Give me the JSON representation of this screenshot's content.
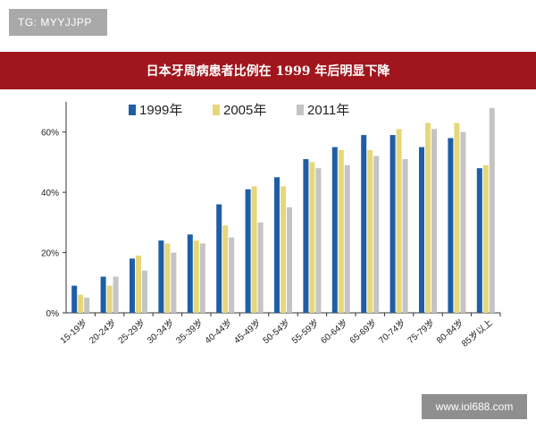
{
  "watermark_top": "TG: MYYJJPP",
  "watermark_bottom": "www.iol688.com",
  "chart_data": {
    "type": "bar",
    "title": "日本牙周病患者比例在 1999 年后明显下降",
    "xlabel": "",
    "ylabel": "",
    "categories": [
      "15-19岁",
      "20-24岁",
      "25-29岁",
      "30-34岁",
      "35-39岁",
      "40-44岁",
      "45-49岁",
      "50-54岁",
      "55-59岁",
      "60-64岁",
      "65-69岁",
      "70-74岁",
      "75-79岁",
      "80-84岁",
      "85岁以上"
    ],
    "series": [
      {
        "name": "1999年",
        "color": "#1f5ea6",
        "values": [
          9,
          12,
          18,
          24,
          26,
          36,
          41,
          45,
          51,
          55,
          59,
          59,
          55,
          58,
          48
        ]
      },
      {
        "name": "2005年",
        "color": "#e6d77a",
        "values": [
          6,
          9,
          19,
          23,
          24,
          29,
          42,
          42,
          50,
          54,
          54,
          61,
          63,
          63,
          49
        ]
      },
      {
        "name": "2011年",
        "color": "#c4c4c4",
        "values": [
          5,
          12,
          14,
          20,
          23,
          25,
          30,
          35,
          48,
          49,
          52,
          51,
          61,
          60,
          68
        ]
      }
    ],
    "ylim": [
      0,
      70
    ],
    "yticks": [
      0,
      20,
      40,
      60
    ],
    "ytick_labels": [
      "0%",
      "20%",
      "40%",
      "60%"
    ],
    "grid": false,
    "legend_position": "top"
  }
}
